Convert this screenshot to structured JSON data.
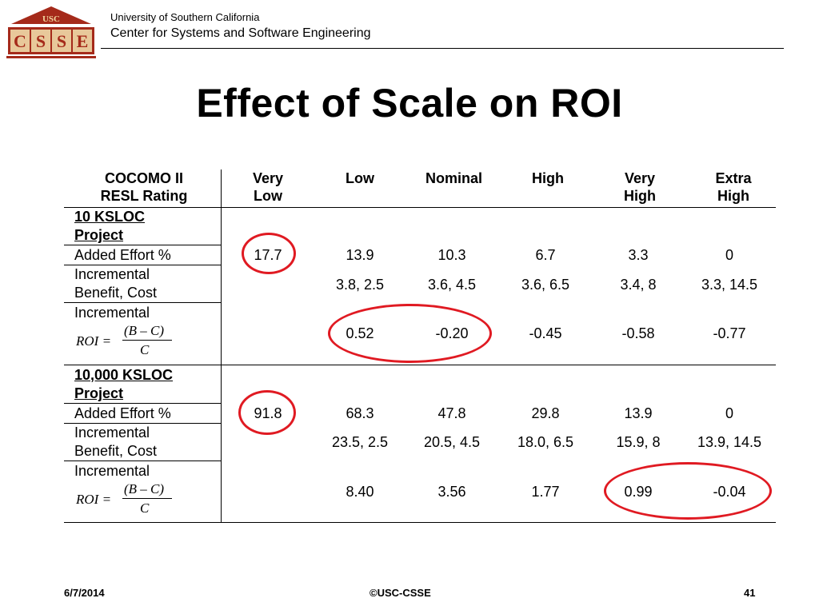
{
  "header": {
    "logo_top": "USC",
    "logo_letters": [
      "C",
      "S",
      "S",
      "E"
    ],
    "university": "University of Southern California",
    "center": "Center for Systems and Software Engineering"
  },
  "title": "Effect of Scale on ROI",
  "table": {
    "head_rating": [
      "COCOMO II",
      "RESL Rating"
    ],
    "columns": [
      [
        "Very",
        "Low"
      ],
      [
        "Low",
        ""
      ],
      [
        "Nominal",
        ""
      ],
      [
        "High",
        ""
      ],
      [
        "Very",
        "High"
      ],
      [
        "Extra",
        "High"
      ]
    ],
    "sections": [
      {
        "project": [
          "10 KSLOC",
          "Project"
        ],
        "effort_label": "Added Effort %",
        "effort": [
          "17.7",
          "13.9",
          "10.3",
          "6.7",
          "3.3",
          "0"
        ],
        "benefit_label": [
          "Incremental",
          "Benefit, Cost"
        ],
        "benefit_cost": [
          "3.8, 2.5",
          "3.6, 4.5",
          "3.6, 6.5",
          "3.4, 8",
          "3.3, 14.5"
        ],
        "roi_label": "Incremental",
        "roi": [
          "0.52",
          "-0.20",
          "-0.45",
          "-0.58",
          "-0.77"
        ]
      },
      {
        "project": [
          "10,000 KSLOC",
          "Project"
        ],
        "effort_label": "Added Effort %",
        "effort": [
          "91.8",
          "68.3",
          "47.8",
          "29.8",
          "13.9",
          "0"
        ],
        "benefit_label": [
          "Incremental",
          "Benefit, Cost"
        ],
        "benefit_cost": [
          "23.5, 2.5",
          "20.5, 4.5",
          "18.0, 6.5",
          "15.9, 8",
          "13.9, 14.5"
        ],
        "roi_label": "Incremental",
        "roi": [
          "8.40",
          "3.56",
          "1.77",
          "0.99",
          "-0.04"
        ]
      }
    ],
    "formula": {
      "lhs": "ROI =",
      "numerator": "(B – C)",
      "denominator": "C"
    }
  },
  "footer": {
    "date": "6/7/2014",
    "copyright": "©USC-CSSE",
    "page": "41"
  },
  "colors": {
    "circle": "#e01a22",
    "logo_red": "#a52a1a",
    "logo_tan": "#e8c89a"
  }
}
